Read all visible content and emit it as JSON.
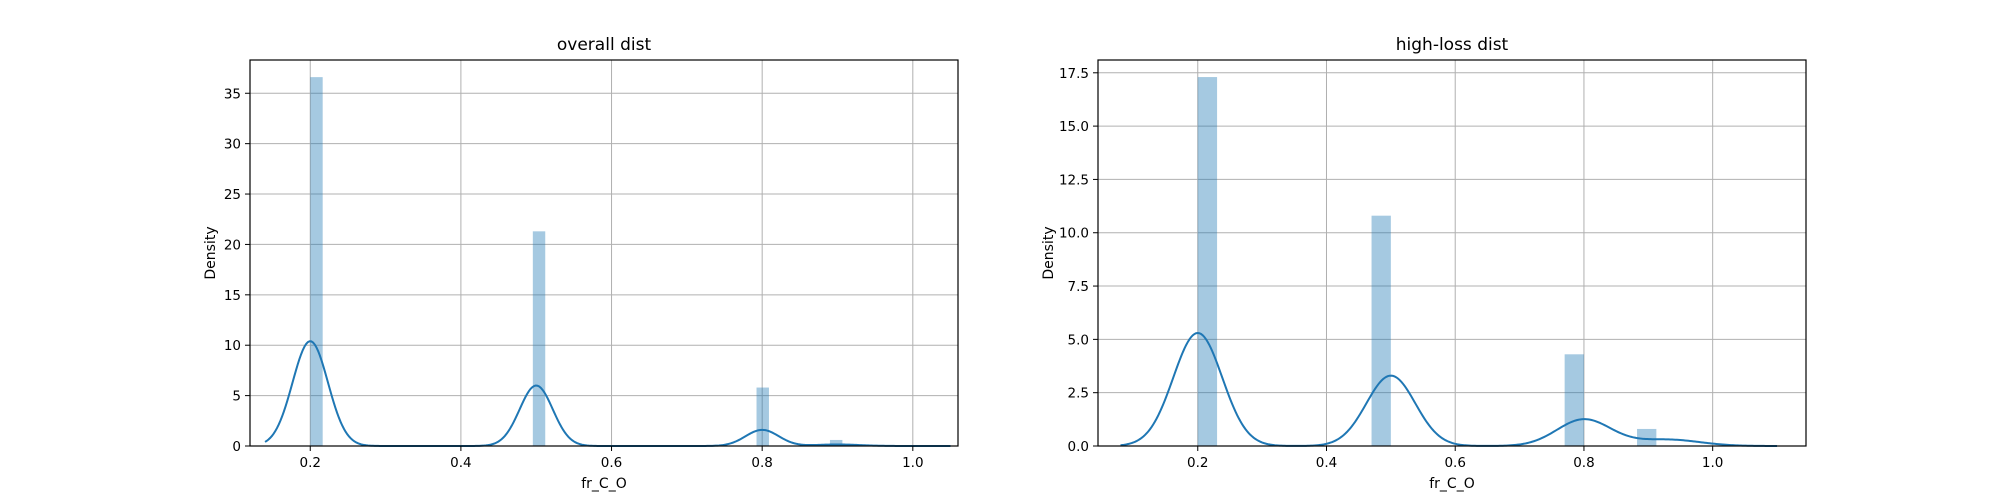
{
  "chart_data": [
    {
      "type": "histogram+kde",
      "title": "overall dist",
      "xlabel": "fr_C_O",
      "ylabel": "Density",
      "xlim": [
        0.12,
        1.06
      ],
      "ylim": [
        0,
        38.3
      ],
      "xticks": [
        0.2,
        0.4,
        0.6,
        0.8,
        1.0
      ],
      "xtick_labels": [
        "0.2",
        "0.4",
        "0.6",
        "0.8",
        "1.0"
      ],
      "yticks": [
        0,
        5,
        10,
        15,
        20,
        25,
        30,
        35
      ],
      "ytick_labels": [
        "0",
        "5",
        "10",
        "15",
        "20",
        "25",
        "30",
        "35"
      ],
      "grid": true,
      "bins": [
        {
          "x0": 0.2,
          "x1": 0.2165,
          "density": 36.6
        },
        {
          "x0": 0.4955,
          "x1": 0.512,
          "density": 21.3
        },
        {
          "x0": 0.7925,
          "x1": 0.809,
          "density": 5.8
        },
        {
          "x0": 0.89,
          "x1": 0.9065,
          "density": 0.6
        }
      ],
      "kde": {
        "x_range": [
          0.14,
          1.05
        ],
        "components": [
          {
            "mu": 0.2,
            "sigma": 0.0235,
            "peak": 10.4
          },
          {
            "mu": 0.5,
            "sigma": 0.022,
            "peak": 6.0
          },
          {
            "mu": 0.8,
            "sigma": 0.022,
            "peak": 1.6
          },
          {
            "mu": 0.9,
            "sigma": 0.03,
            "peak": 0.15
          }
        ]
      }
    },
    {
      "type": "histogram+kde",
      "title": "high-loss dist",
      "xlabel": "fr_C_O",
      "ylabel": "Density",
      "xlim": [
        0.045,
        1.145
      ],
      "ylim": [
        0,
        18.1
      ],
      "xticks": [
        0.2,
        0.4,
        0.6,
        0.8,
        1.0
      ],
      "xtick_labels": [
        "0.2",
        "0.4",
        "0.6",
        "0.8",
        "1.0"
      ],
      "yticks": [
        0,
        2.5,
        5,
        7.5,
        10,
        12.5,
        15,
        17.5
      ],
      "ytick_labels": [
        "0.0",
        "2.5",
        "5.0",
        "7.5",
        "10.0",
        "12.5",
        "15.0",
        "17.5"
      ],
      "grid": true,
      "bins": [
        {
          "x0": 0.2,
          "x1": 0.23,
          "density": 17.3
        },
        {
          "x0": 0.47,
          "x1": 0.5,
          "density": 10.8
        },
        {
          "x0": 0.77,
          "x1": 0.8,
          "density": 4.3
        },
        {
          "x0": 0.8825,
          "x1": 0.9125,
          "density": 0.8
        }
      ],
      "kde": {
        "x_range": [
          0.08,
          1.1
        ],
        "components": [
          {
            "mu": 0.2,
            "sigma": 0.038,
            "peak": 5.3
          },
          {
            "mu": 0.5,
            "sigma": 0.038,
            "peak": 3.3
          },
          {
            "mu": 0.8,
            "sigma": 0.042,
            "peak": 1.25
          },
          {
            "mu": 0.93,
            "sigma": 0.05,
            "peak": 0.3
          }
        ]
      }
    }
  ]
}
